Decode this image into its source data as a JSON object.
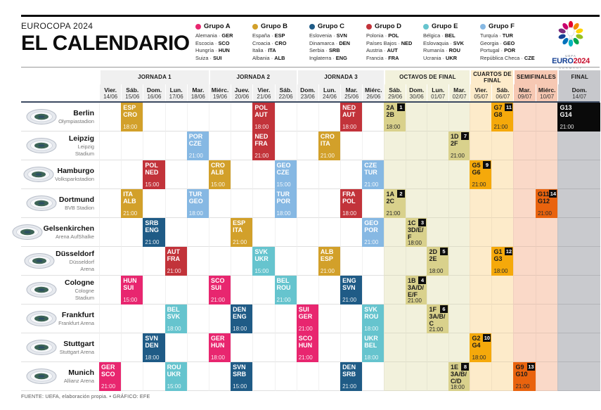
{
  "header": {
    "kicker": "EUROCOPA 2024",
    "title": "EL CALENDARIO"
  },
  "logo": {
    "uefa": "UEFA",
    "euro": "EURO",
    "year": "2024",
    "country": "GERMANY"
  },
  "groups": [
    {
      "id": "A",
      "label": "Grupo A",
      "color": "#E8266F",
      "teams": [
        {
          "name": "Alemania",
          "code": "GER"
        },
        {
          "name": "Escocia",
          "code": "SCO"
        },
        {
          "name": "Hungría",
          "code": "HUN"
        },
        {
          "name": "Suiza",
          "code": "SUI"
        }
      ]
    },
    {
      "id": "B",
      "label": "Grupo B",
      "color": "#D2A02A",
      "teams": [
        {
          "name": "España",
          "code": "ESP"
        },
        {
          "name": "Croacia",
          "code": "CRO"
        },
        {
          "name": "Italia",
          "code": "ITA"
        },
        {
          "name": "Albania",
          "code": "ALB"
        }
      ]
    },
    {
      "id": "C",
      "label": "Grupo C",
      "color": "#1F5B86",
      "teams": [
        {
          "name": "Eslovenia",
          "code": "SVN"
        },
        {
          "name": "Dinamarca",
          "code": "DEN"
        },
        {
          "name": "Serbia",
          "code": "SRB"
        },
        {
          "name": "Inglaterra",
          "code": "ENG"
        }
      ]
    },
    {
      "id": "D",
      "label": "Grupo D",
      "color": "#C2333A",
      "teams": [
        {
          "name": "Polonia",
          "code": "POL"
        },
        {
          "name": "Países Bajos",
          "code": "NED"
        },
        {
          "name": "Austria",
          "code": "AUT"
        },
        {
          "name": "Francia",
          "code": "FRA"
        }
      ]
    },
    {
      "id": "E",
      "label": "Grupo E",
      "color": "#66C4CE",
      "teams": [
        {
          "name": "Bélgica",
          "code": "BEL"
        },
        {
          "name": "Eslovaquia",
          "code": "SVK"
        },
        {
          "name": "Rumanía",
          "code": "ROU"
        },
        {
          "name": "Ucrania",
          "code": "UKR"
        }
      ]
    },
    {
      "id": "F",
      "label": "Grupo F",
      "color": "#86B8E3",
      "teams": [
        {
          "name": "Turquía",
          "code": "TUR"
        },
        {
          "name": "Georgia",
          "code": "GEO"
        },
        {
          "name": "Portugal",
          "code": "POR"
        },
        {
          "name": "República Checa",
          "code": "CZE"
        }
      ]
    }
  ],
  "phase_colors": {
    "jornada_bg": "#F0F0F0",
    "octavos_bg": "#F2F1DC",
    "cuartos_bg": "#FDEBCA",
    "semis_header_bg": "#F6C8B3",
    "semis_body_bg": "#FAD9C8",
    "final_bg": "#C7C8CC",
    "octavos_cell": "#D9D18C",
    "cuartos_cell": "#F5A90B",
    "semis_cell": "#E9630E",
    "final_cell": "#0A0A0A",
    "badge_bg": "#0D0D0D"
  },
  "phases": [
    {
      "label": "JORNADA 1",
      "type": "jornada",
      "dates": [
        {
          "day": "Vier.",
          "date": "14/06"
        },
        {
          "day": "Sáb.",
          "date": "15/06"
        },
        {
          "day": "Dom.",
          "date": "16/06"
        },
        {
          "day": "Lun.",
          "date": "17/06"
        },
        {
          "day": "Mar.",
          "date": "18/06"
        }
      ]
    },
    {
      "label": "JORNADA 2",
      "type": "jornada",
      "dates": [
        {
          "day": "Miérc.",
          "date": "19/06"
        },
        {
          "day": "Juev.",
          "date": "20/06"
        },
        {
          "day": "Vier.",
          "date": "21/06"
        },
        {
          "day": "Sáb.",
          "date": "22/06"
        }
      ]
    },
    {
      "label": "JORNADA 3",
      "type": "jornada",
      "dates": [
        {
          "day": "Dom.",
          "date": "23/06"
        },
        {
          "day": "Lun.",
          "date": "24/06"
        },
        {
          "day": "Mar.",
          "date": "25/06"
        },
        {
          "day": "Miérc.",
          "date": "26/06"
        }
      ]
    },
    {
      "label": "OCTAVOS DE FINAL",
      "type": "octavos",
      "dates": [
        {
          "day": "Sáb.",
          "date": "29/06"
        },
        {
          "day": "Dom.",
          "date": "30/06"
        },
        {
          "day": "Lun.",
          "date": "01/07"
        },
        {
          "day": "Mar.",
          "date": "02/07"
        }
      ]
    },
    {
      "label": "CUARTOS DE FINAL",
      "type": "cuartos",
      "dates": [
        {
          "day": "Vier.",
          "date": "05/07"
        },
        {
          "day": "Sáb.",
          "date": "06/07"
        }
      ]
    },
    {
      "label": "SEMIFINALES",
      "type": "semis",
      "dates": [
        {
          "day": "Mar.",
          "date": "09/07"
        },
        {
          "day": "Miérc.",
          "date": "10/07"
        }
      ]
    },
    {
      "label": "FINAL",
      "type": "final",
      "dates": [
        {
          "day": "Dom.",
          "date": "14/07"
        }
      ]
    }
  ],
  "venues": [
    {
      "city": "Berlin",
      "stadium": "Olympiastadion",
      "matches": [
        {
          "col": 1,
          "lines": [
            "ESP",
            "CRO"
          ],
          "time": "18:00",
          "style": "B"
        },
        {
          "col": 7,
          "lines": [
            "POL",
            "AUT"
          ],
          "time": "18:00",
          "style": "D"
        },
        {
          "col": 11,
          "lines": [
            "NED",
            "AUT"
          ],
          "time": "18:00",
          "style": "D"
        },
        {
          "col": 13,
          "lines": [
            "2A",
            "2B"
          ],
          "time": "18:00",
          "style": "octavos",
          "badge": "1"
        },
        {
          "col": 18,
          "lines": [
            "G7",
            "G8"
          ],
          "time": "21:00",
          "style": "cuartos",
          "badge": "11"
        },
        {
          "col": 21,
          "lines": [
            "G13",
            "G14"
          ],
          "time": "21:00",
          "style": "final"
        }
      ]
    },
    {
      "city": "Leipzig",
      "stadium": "Leipzig Stadium",
      "matches": [
        {
          "col": 4,
          "lines": [
            "POR",
            "CZE"
          ],
          "time": "21:00",
          "style": "F"
        },
        {
          "col": 7,
          "lines": [
            "NED",
            "FRA"
          ],
          "time": "21:00",
          "style": "D"
        },
        {
          "col": 10,
          "lines": [
            "CRO",
            "ITA"
          ],
          "time": "21:00",
          "style": "B"
        },
        {
          "col": 16,
          "lines": [
            "1D",
            "2F"
          ],
          "time": "21:00",
          "style": "octavos",
          "badge": "7"
        }
      ]
    },
    {
      "city": "Hamburgo",
      "stadium": "Volksparkstadion",
      "matches": [
        {
          "col": 2,
          "lines": [
            "POL",
            "NED"
          ],
          "time": "15:00",
          "style": "D"
        },
        {
          "col": 5,
          "lines": [
            "CRO",
            "ALB"
          ],
          "time": "15:00",
          "style": "B"
        },
        {
          "col": 8,
          "lines": [
            "GEO",
            "CZE"
          ],
          "time": "15:00",
          "style": "F"
        },
        {
          "col": 12,
          "lines": [
            "CZE",
            "TUR"
          ],
          "time": "21:00",
          "style": "F"
        },
        {
          "col": 17,
          "lines": [
            "G5",
            "G6"
          ],
          "time": "21:00",
          "style": "cuartos",
          "badge": "9"
        }
      ]
    },
    {
      "city": "Dortmund",
      "stadium": "BVB Stadion",
      "matches": [
        {
          "col": 1,
          "lines": [
            "ITA",
            "ALB"
          ],
          "time": "21:00",
          "style": "B"
        },
        {
          "col": 4,
          "lines": [
            "TUR",
            "GEO"
          ],
          "time": "18:00",
          "style": "F"
        },
        {
          "col": 8,
          "lines": [
            "TUR",
            "POR"
          ],
          "time": "18:00",
          "style": "F"
        },
        {
          "col": 11,
          "lines": [
            "FRA",
            "POL"
          ],
          "time": "18:00",
          "style": "D"
        },
        {
          "col": 13,
          "lines": [
            "1A",
            "2C"
          ],
          "time": "21:00",
          "style": "octavos",
          "badge": "2"
        },
        {
          "col": 20,
          "lines": [
            "G11",
            "G12"
          ],
          "time": "21:00",
          "style": "semis",
          "badge": "14"
        }
      ]
    },
    {
      "city": "Gelsenkirchen",
      "stadium": "Arena AufShalke",
      "matches": [
        {
          "col": 2,
          "lines": [
            "SRB",
            "ENG"
          ],
          "time": "21:00",
          "style": "C"
        },
        {
          "col": 6,
          "lines": [
            "ESP",
            "ITA"
          ],
          "time": "21:00",
          "style": "B"
        },
        {
          "col": 12,
          "lines": [
            "GEO",
            "POR"
          ],
          "time": "21:00",
          "style": "F"
        },
        {
          "col": 14,
          "lines": [
            "1C",
            "3D/E/F"
          ],
          "time": "18:00",
          "style": "octavos",
          "badge": "3"
        }
      ]
    },
    {
      "city": "Düsseldorf",
      "stadium": "Düsseldorf Arena",
      "matches": [
        {
          "col": 3,
          "lines": [
            "AUT",
            "FRA"
          ],
          "time": "21:00",
          "style": "D"
        },
        {
          "col": 7,
          "lines": [
            "SVK",
            "UKR"
          ],
          "time": "15:00",
          "style": "E"
        },
        {
          "col": 10,
          "lines": [
            "ALB",
            "ESP"
          ],
          "time": "21:00",
          "style": "B"
        },
        {
          "col": 15,
          "lines": [
            "2D",
            "2E"
          ],
          "time": "18:00",
          "style": "octavos",
          "badge": "5"
        },
        {
          "col": 18,
          "lines": [
            "G1",
            "G3"
          ],
          "time": "18:00",
          "style": "cuartos",
          "badge": "12"
        }
      ]
    },
    {
      "city": "Cologne",
      "stadium": "Cologne Stadium",
      "matches": [
        {
          "col": 1,
          "lines": [
            "HUN",
            "SUI"
          ],
          "time": "15:00",
          "style": "A"
        },
        {
          "col": 5,
          "lines": [
            "SCO",
            "SUI"
          ],
          "time": "21:00",
          "style": "A"
        },
        {
          "col": 8,
          "lines": [
            "BEL",
            "ROU"
          ],
          "time": "21:00",
          "style": "E"
        },
        {
          "col": 11,
          "lines": [
            "ENG",
            "SVN"
          ],
          "time": "21:00",
          "style": "C"
        },
        {
          "col": 14,
          "lines": [
            "1B",
            "3A/D/E/F"
          ],
          "time": "21:00",
          "style": "octavos",
          "badge": "4"
        }
      ]
    },
    {
      "city": "Frankfurt",
      "stadium": "Frankfurt Arena",
      "matches": [
        {
          "col": 3,
          "lines": [
            "BEL",
            "SVK"
          ],
          "time": "18:00",
          "style": "E"
        },
        {
          "col": 6,
          "lines": [
            "DEN",
            "ENG"
          ],
          "time": "18:00",
          "style": "C"
        },
        {
          "col": 9,
          "lines": [
            "SUI",
            "GER"
          ],
          "time": "21:00",
          "style": "A"
        },
        {
          "col": 12,
          "lines": [
            "SVK",
            "ROU"
          ],
          "time": "18:00",
          "style": "E"
        },
        {
          "col": 15,
          "lines": [
            "1F",
            "3A/B/C"
          ],
          "time": "21:00",
          "style": "octavos",
          "badge": "6"
        }
      ]
    },
    {
      "city": "Stuttgart",
      "stadium": "Stuttgart Arena",
      "matches": [
        {
          "col": 2,
          "lines": [
            "SVN",
            "DEN"
          ],
          "time": "18:00",
          "style": "C"
        },
        {
          "col": 5,
          "lines": [
            "GER",
            "HUN"
          ],
          "time": "18:00",
          "style": "A"
        },
        {
          "col": 9,
          "lines": [
            "SCO",
            "HUN"
          ],
          "time": "21:00",
          "style": "A"
        },
        {
          "col": 12,
          "lines": [
            "UKR",
            "BEL"
          ],
          "time": "18:00",
          "style": "E"
        },
        {
          "col": 17,
          "lines": [
            "G2",
            "G4"
          ],
          "time": "18:00",
          "style": "cuartos",
          "badge": "10"
        }
      ]
    },
    {
      "city": "Munich",
      "stadium": "Allianz Arena",
      "matches": [
        {
          "col": 0,
          "lines": [
            "GER",
            "SCO"
          ],
          "time": "21:00",
          "style": "A"
        },
        {
          "col": 3,
          "lines": [
            "ROU",
            "UKR"
          ],
          "time": "15:00",
          "style": "E"
        },
        {
          "col": 6,
          "lines": [
            "SVN",
            "SRB"
          ],
          "time": "15:00",
          "style": "C"
        },
        {
          "col": 11,
          "lines": [
            "DEN",
            "SRB"
          ],
          "time": "21:00",
          "style": "C"
        },
        {
          "col": 16,
          "lines": [
            "1E",
            "3A/B/C/D"
          ],
          "time": "18:00",
          "style": "octavos",
          "badge": "8"
        },
        {
          "col": 19,
          "lines": [
            "G9",
            "G10"
          ],
          "time": "21:00",
          "style": "semis",
          "badge": "13"
        }
      ]
    }
  ],
  "footer": {
    "source": "FUENTE: UEFA, elaboración propia. • GRÁFICO: EFE"
  }
}
